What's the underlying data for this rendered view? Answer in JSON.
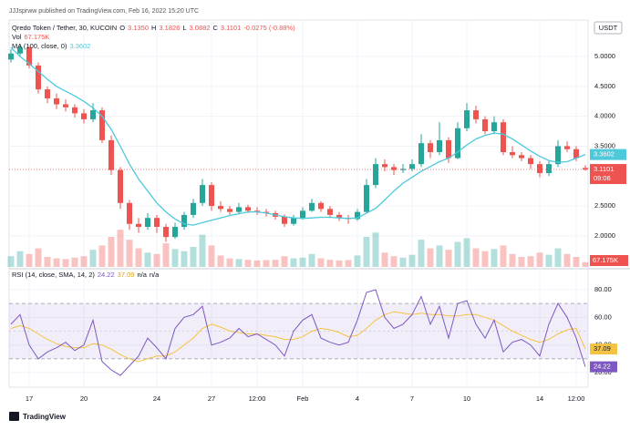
{
  "attribution": "JJJsprww published on TradingView.com, Feb 16, 2022 15:20 UTC",
  "footer": "TradingView",
  "chart_data": [
    {
      "type": "candlestick",
      "title": "Qredo Token / Tether, 30, KUCOIN",
      "ohlc_legend": [
        "O",
        "3.1350",
        "H",
        "3.1826",
        "L",
        "3.0882",
        "C",
        "3.1101",
        "-0.0275 (-0.88%)"
      ],
      "currency": "USDT",
      "countdown": "09:06",
      "up_color": "#26a69a",
      "down_color": "#ef5350",
      "categories": [
        null,
        null,
        null,
        null,
        null,
        null,
        null,
        null,
        null,
        null,
        null,
        null,
        null,
        null,
        null,
        null,
        null,
        null,
        null,
        null,
        null,
        null,
        null,
        null,
        null,
        null,
        null,
        null,
        null,
        null,
        null,
        null,
        null,
        null,
        null,
        null,
        null,
        null,
        null,
        null,
        null,
        null,
        null,
        null,
        null,
        null,
        null,
        null,
        null,
        null,
        null,
        null,
        null,
        null,
        null,
        null,
        null,
        null,
        null,
        null,
        null,
        null,
        null,
        null
      ],
      "open": [
        4.95,
        5.05,
        5.15,
        4.85,
        4.45,
        4.3,
        4.2,
        4.15,
        4.05,
        3.95,
        4.1,
        3.6,
        3.1,
        2.55,
        2.2,
        2.15,
        2.3,
        2.15,
        1.98,
        2.15,
        2.35,
        2.55,
        2.85,
        2.5,
        2.45,
        2.4,
        2.48,
        2.42,
        2.4,
        2.38,
        2.32,
        2.2,
        2.3,
        2.42,
        2.55,
        2.45,
        2.35,
        2.3,
        2.28,
        2.4,
        2.85,
        3.2,
        3.15,
        3.1,
        3.12,
        3.2,
        3.55,
        3.4,
        3.6,
        3.3,
        3.8,
        4.1,
        3.95,
        3.75,
        3.9,
        3.4,
        3.35,
        3.3,
        3.2,
        3.05,
        3.2,
        3.5,
        3.45,
        3.135
      ],
      "high": [
        5.12,
        5.2,
        5.18,
        4.9,
        4.5,
        4.38,
        4.28,
        4.2,
        4.12,
        4.22,
        4.15,
        3.68,
        3.15,
        2.6,
        2.3,
        2.38,
        2.35,
        2.2,
        2.22,
        2.4,
        2.62,
        2.95,
        2.9,
        2.58,
        2.5,
        2.55,
        2.52,
        2.48,
        2.45,
        2.42,
        2.36,
        2.35,
        2.48,
        2.62,
        2.58,
        2.5,
        2.4,
        2.35,
        2.45,
        2.95,
        3.3,
        3.28,
        3.2,
        3.2,
        3.28,
        3.7,
        3.6,
        3.9,
        3.65,
        3.9,
        4.22,
        4.18,
        4.0,
        4.0,
        3.95,
        3.5,
        3.4,
        3.35,
        3.25,
        3.25,
        3.6,
        3.58,
        3.5,
        3.1826
      ],
      "low": [
        4.9,
        5.0,
        4.8,
        4.38,
        4.22,
        4.12,
        4.08,
        3.98,
        3.88,
        3.9,
        3.55,
        3.02,
        2.45,
        2.1,
        2.05,
        2.1,
        2.05,
        1.9,
        1.95,
        2.1,
        2.3,
        2.5,
        2.42,
        2.4,
        2.35,
        2.36,
        2.38,
        2.35,
        2.32,
        2.27,
        2.15,
        2.17,
        2.27,
        2.4,
        2.4,
        2.3,
        2.25,
        2.2,
        2.25,
        2.38,
        2.8,
        3.08,
        3.02,
        3.05,
        3.08,
        3.15,
        3.3,
        3.35,
        3.22,
        3.28,
        3.75,
        3.88,
        3.7,
        3.7,
        3.35,
        3.3,
        3.25,
        3.12,
        2.98,
        3.0,
        3.15,
        3.4,
        3.25,
        3.0882
      ],
      "close": [
        5.05,
        5.15,
        4.85,
        4.45,
        4.3,
        4.2,
        4.15,
        4.05,
        3.95,
        4.1,
        3.6,
        3.1,
        2.55,
        2.2,
        2.15,
        2.3,
        2.15,
        1.98,
        2.15,
        2.35,
        2.55,
        2.85,
        2.5,
        2.45,
        2.4,
        2.48,
        2.42,
        2.4,
        2.38,
        2.32,
        2.2,
        2.3,
        2.42,
        2.55,
        2.45,
        2.35,
        2.3,
        2.28,
        2.4,
        2.85,
        3.2,
        3.15,
        3.1,
        3.12,
        3.2,
        3.55,
        3.4,
        3.6,
        3.3,
        3.8,
        4.1,
        3.95,
        3.75,
        3.9,
        3.4,
        3.35,
        3.3,
        3.2,
        3.05,
        3.2,
        3.5,
        3.45,
        3.3,
        3.1101
      ],
      "last_label": "3.1101",
      "series": [
        {
          "name": "MA (100, close, 0)",
          "color": "#4dc9dc",
          "last_label": "3.3602",
          "values": [
            5.15,
            5.0,
            4.88,
            4.75,
            4.62,
            4.5,
            4.42,
            4.34,
            4.25,
            4.14,
            4.0,
            3.78,
            3.5,
            3.2,
            2.95,
            2.75,
            2.55,
            2.4,
            2.28,
            2.2,
            2.18,
            2.22,
            2.26,
            2.3,
            2.34,
            2.37,
            2.4,
            2.4,
            2.38,
            2.35,
            2.32,
            2.3,
            2.29,
            2.3,
            2.31,
            2.31,
            2.3,
            2.29,
            2.3,
            2.38,
            2.46,
            2.6,
            2.75,
            2.88,
            2.98,
            3.08,
            3.16,
            3.24,
            3.3,
            3.4,
            3.52,
            3.62,
            3.68,
            3.72,
            3.7,
            3.62,
            3.52,
            3.42,
            3.33,
            3.26,
            3.23,
            3.24,
            3.3,
            3.3602
          ]
        }
      ],
      "volume": {
        "name": "Vol",
        "last_label": "67.175K",
        "vlim": [
          0,
          700000
        ],
        "values": [
          150000,
          220000,
          180000,
          260000,
          140000,
          120000,
          110000,
          130000,
          150000,
          240000,
          300000,
          420000,
          520000,
          380000,
          260000,
          200000,
          180000,
          330000,
          250000,
          220000,
          280000,
          450000,
          300000,
          160000,
          120000,
          110000,
          100000,
          90000,
          95000,
          100000,
          150000,
          120000,
          130000,
          180000,
          120000,
          100000,
          90000,
          95000,
          160000,
          420000,
          480000,
          200000,
          150000,
          130000,
          170000,
          380000,
          260000,
          300000,
          240000,
          350000,
          400000,
          260000,
          220000,
          250000,
          300000,
          180000,
          140000,
          150000,
          200000,
          170000,
          260000,
          180000,
          140000,
          67175
        ]
      },
      "ylim": [
        1.48,
        5.61
      ],
      "yticks": [
        {
          "value": 2,
          "label": "2.0000"
        },
        {
          "value": 2.5,
          "label": "2.5000"
        },
        {
          "value": 3.5,
          "label": "3.5000"
        },
        {
          "value": 4,
          "label": "4.0000"
        },
        {
          "value": 4.5,
          "label": "4.5000"
        },
        {
          "value": 5,
          "label": "5.0000"
        }
      ],
      "grid": true
    },
    {
      "type": "line",
      "title": "RSI (14, close, SMA, 14, 2)",
      "extra_legend": [
        "n/a",
        "n/a"
      ],
      "band": [
        30,
        70
      ],
      "midline": 50,
      "band_color": "#7e57c2",
      "series": [
        {
          "color": "#7e57c2",
          "last_label": "24.22",
          "values": [
            55,
            62,
            40,
            30,
            35,
            38,
            42,
            36,
            40,
            58,
            28,
            22,
            18,
            25,
            32,
            45,
            38,
            30,
            52,
            60,
            62,
            68,
            40,
            42,
            45,
            52,
            46,
            48,
            44,
            40,
            32,
            50,
            58,
            62,
            45,
            42,
            40,
            42,
            58,
            78,
            80,
            60,
            52,
            55,
            62,
            75,
            55,
            68,
            45,
            70,
            72,
            55,
            45,
            58,
            35,
            42,
            44,
            40,
            32,
            55,
            70,
            60,
            45,
            24.22
          ]
        },
        {
          "color": "#f5c242",
          "last_label": "37.09",
          "values": [
            52,
            54,
            52,
            48,
            44,
            41,
            39,
            38,
            38,
            41,
            40,
            37,
            33,
            30,
            28,
            30,
            32,
            32,
            35,
            40,
            45,
            52,
            55,
            53,
            50,
            49,
            48,
            48,
            47,
            46,
            44,
            44,
            46,
            50,
            52,
            51,
            49,
            46,
            47,
            52,
            58,
            62,
            64,
            63,
            62,
            63,
            62,
            62,
            61,
            61,
            62,
            62,
            60,
            58,
            54,
            50,
            47,
            44,
            42,
            44,
            48,
            51,
            52,
            37.09
          ]
        }
      ],
      "ylim": [
        9.5,
        93.8
      ],
      "yticks": [
        {
          "value": 20,
          "label": "20.00"
        },
        {
          "value": 40,
          "label": "40.00"
        },
        {
          "value": 60,
          "label": "60.00"
        },
        {
          "value": 80,
          "label": "80.00"
        }
      ],
      "xlim": [
        -0.2,
        63.3
      ],
      "xticks": [
        {
          "value": 2,
          "label": "17"
        },
        {
          "value": 8,
          "label": "20"
        },
        {
          "value": 16,
          "label": "24"
        },
        {
          "value": 22,
          "label": "27"
        },
        {
          "value": 27,
          "label": "12:00"
        },
        {
          "value": 32,
          "label": "Feb"
        },
        {
          "value": 38,
          "label": "4"
        },
        {
          "value": 44,
          "label": "7"
        },
        {
          "value": 50,
          "label": "10"
        },
        {
          "value": 58,
          "label": "14"
        },
        {
          "value": 62,
          "label": "12:00"
        }
      ],
      "grid": true
    }
  ]
}
